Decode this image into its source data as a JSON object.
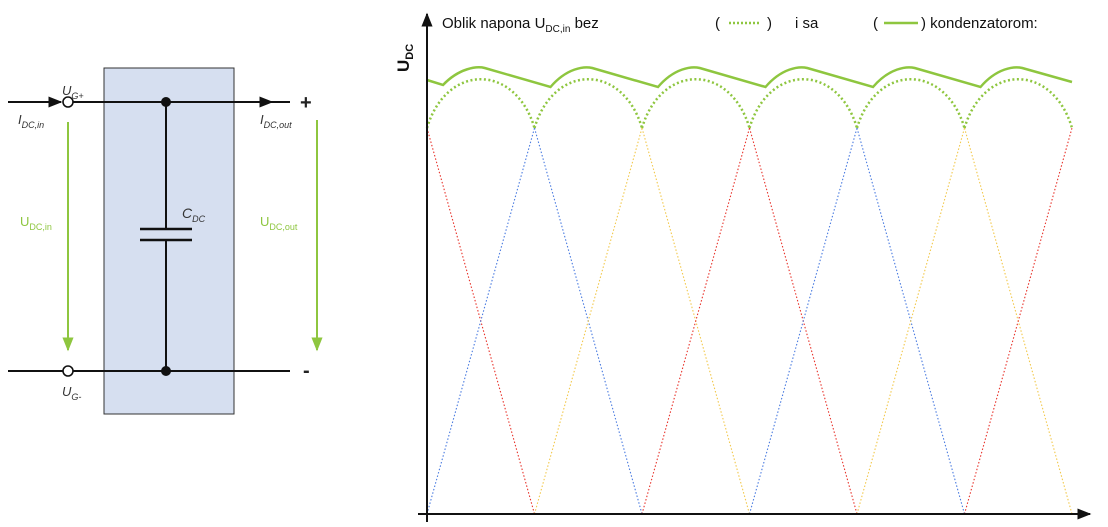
{
  "circuit": {
    "top_terminal": {
      "main": "U",
      "sub": "G+"
    },
    "bottom_terminal": {
      "main": "U",
      "sub": "G-"
    },
    "current_in": {
      "main": "I",
      "sub": "DC,in"
    },
    "current_out": {
      "main": "I",
      "sub": "DC,out"
    },
    "voltage_in": {
      "main": "U",
      "sub": "DC,in"
    },
    "voltage_out": {
      "main": "U",
      "sub": "DC,out"
    },
    "capacitor": {
      "main": "C",
      "sub": "DC"
    },
    "plus_sign": "+",
    "minus_sign": "-"
  },
  "plot": {
    "y_axis_label": {
      "main": "U",
      "sub": "DC"
    },
    "title": {
      "part1": "Oblik napona  U",
      "sub": "DC,in",
      "part2": " bez",
      "legend_dotted_open": "(",
      "legend_dotted_close": ")",
      "connector": "i  sa",
      "legend_solid_open": "(",
      "legend_solid_close": ") kondenzatorom:"
    }
  },
  "chart_data": {
    "type": "line",
    "x_units": "electrical period (six-pulse), 6 periods shown",
    "periods": 6,
    "series": [
      {
        "style": "dotted",
        "color": "#e8332b",
        "shape": "triangular phase voltage"
      },
      {
        "style": "dotted",
        "color": "#4a7be0",
        "shape": "triangular phase voltage"
      },
      {
        "style": "dotted",
        "color": "#f2c84b",
        "shape": "triangular phase voltage"
      },
      {
        "style": "dotted",
        "color": "#8ec63f",
        "shape": "rectified envelope without capacitor"
      },
      {
        "style": "solid",
        "color": "#8ec63f",
        "shape": "smoothed output with capacitor"
      }
    ],
    "colors": {
      "green": "#8ec63f",
      "red": "#e8332b",
      "blue": "#4a7be0",
      "yellow": "#f2c84b",
      "box_fill": "#d6dff0"
    }
  }
}
